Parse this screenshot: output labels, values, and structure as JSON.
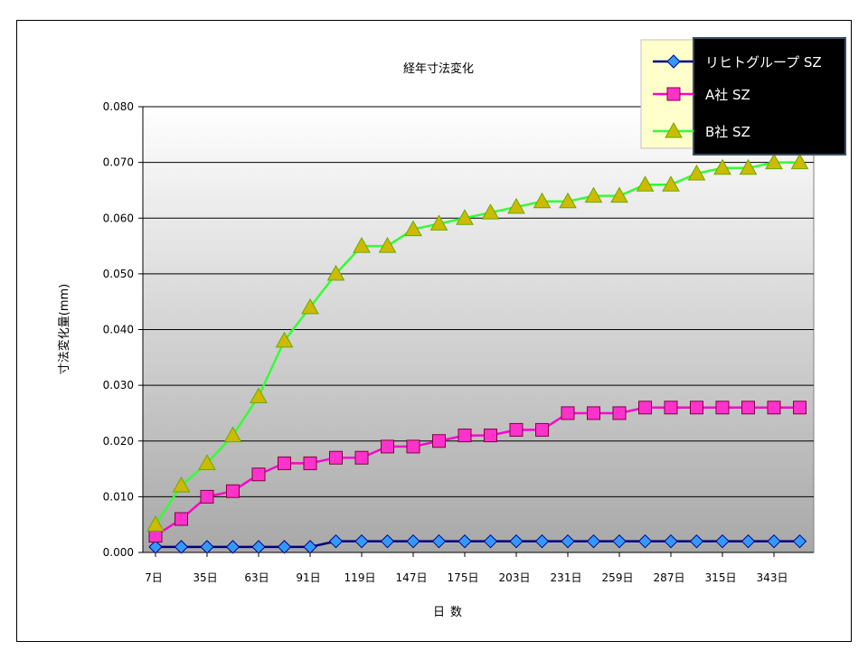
{
  "chart_data": {
    "type": "line",
    "title": "経年寸法変化",
    "xlabel": "日数",
    "ylabel": "寸法変化量(mm)",
    "ylim": [
      0,
      0.08
    ],
    "yticks": [
      "0.000",
      "0.010",
      "0.020",
      "0.030",
      "0.040",
      "0.050",
      "0.060",
      "0.070",
      "0.080"
    ],
    "x": [
      7,
      21,
      35,
      49,
      63,
      77,
      91,
      105,
      119,
      133,
      147,
      161,
      175,
      189,
      203,
      217,
      231,
      245,
      259,
      273,
      287,
      301,
      315,
      329,
      343,
      357
    ],
    "xtick_labels": [
      "7日",
      "35日",
      "63日",
      "91日",
      "119日",
      "147日",
      "175日",
      "203日",
      "231日",
      "259日",
      "287日",
      "315日",
      "343日"
    ],
    "xtick_values": [
      7,
      35,
      63,
      91,
      119,
      147,
      175,
      203,
      231,
      259,
      287,
      315,
      343
    ],
    "grid": true,
    "legend_position": "top-right",
    "series": [
      {
        "name": "リヒトグループ SZ",
        "marker": "diamond",
        "line_color": "#000080",
        "marker_color": "#3399ff",
        "values": [
          0.001,
          0.001,
          0.001,
          0.001,
          0.001,
          0.001,
          0.001,
          0.002,
          0.002,
          0.002,
          0.002,
          0.002,
          0.002,
          0.002,
          0.002,
          0.002,
          0.002,
          0.002,
          0.002,
          0.002,
          0.002,
          0.002,
          0.002,
          0.002,
          0.002,
          0.002
        ]
      },
      {
        "name": "A社 SZ",
        "marker": "square",
        "line_color": "#ff00cc",
        "marker_color": "#ff33cc",
        "values": [
          0.003,
          0.006,
          0.01,
          0.011,
          0.014,
          0.016,
          0.016,
          0.017,
          0.017,
          0.019,
          0.019,
          0.02,
          0.021,
          0.021,
          0.022,
          0.022,
          0.025,
          0.025,
          0.025,
          0.026,
          0.026,
          0.026,
          0.026,
          0.026,
          0.026,
          0.026
        ]
      },
      {
        "name": "B社 SZ",
        "marker": "triangle",
        "line_color": "#33ff33",
        "marker_color": "#ccbb00",
        "values": [
          0.005,
          0.012,
          0.016,
          0.021,
          0.028,
          0.038,
          0.044,
          0.05,
          0.055,
          0.055,
          0.058,
          0.059,
          0.06,
          0.061,
          0.062,
          0.063,
          0.063,
          0.064,
          0.064,
          0.066,
          0.066,
          0.068,
          0.069,
          0.069,
          0.07,
          0.07
        ]
      }
    ]
  }
}
